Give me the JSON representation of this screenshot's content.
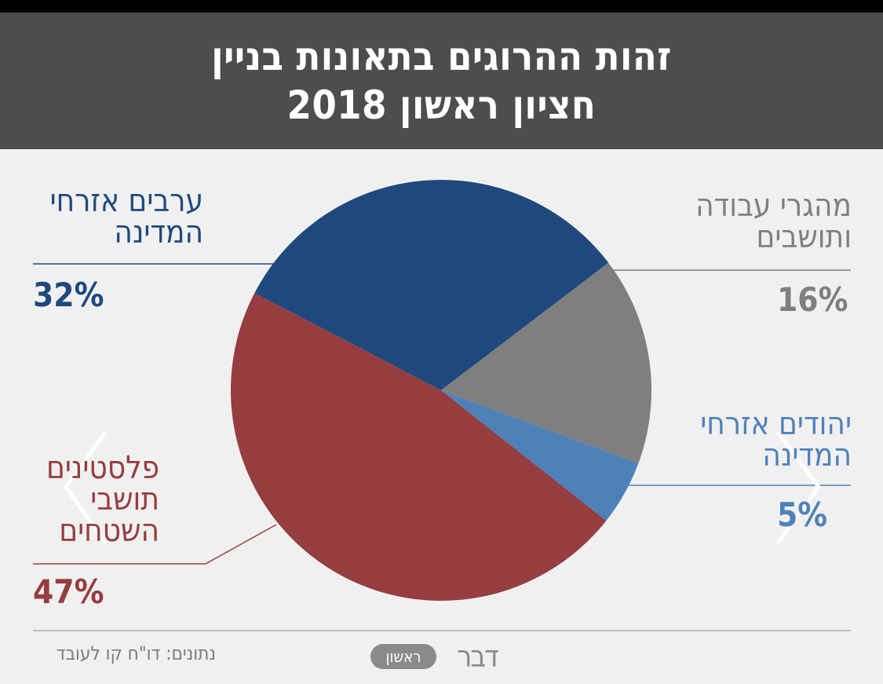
{
  "header": {
    "title_line1": "זהות ההרוגים בתאונות בניין",
    "title_line2": "חציון ראשון 2018"
  },
  "chart_data": {
    "type": "pie",
    "title": "זהות ההרוגים בתאונות בניין חציון ראשון 2018",
    "slices": [
      {
        "label_line1": "ערבים אזרחי",
        "label_line2": "המדינה",
        "label_line3": "",
        "value": 32,
        "value_label": "32%",
        "color": "#1f497d"
      },
      {
        "label_line1": "מהגרי עבודה",
        "label_line2": "ותושבים",
        "label_line3": "",
        "value": 16,
        "value_label": "16%",
        "color": "#7f7f7f"
      },
      {
        "label_line1": "יהודים אזרחי",
        "label_line2": "המדינה",
        "label_line3": "",
        "value": 5,
        "value_label": "5%",
        "color": "#4f81b9"
      },
      {
        "label_line1": "פלסטינים",
        "label_line2": "תושבי",
        "label_line3": "השטחים",
        "value": 47,
        "value_label": "47%",
        "color": "#953d3f"
      }
    ],
    "legend_placement": "labels-around-pie"
  },
  "footer": {
    "source": "נתונים: דו\"ח קו לעובד",
    "logo_word": "דבר",
    "logo_pill": "ראשון"
  },
  "colors": {
    "header_bg": "#4d4d4d",
    "page_bg": "#f0f0f0",
    "label_line": "#1f497d"
  }
}
